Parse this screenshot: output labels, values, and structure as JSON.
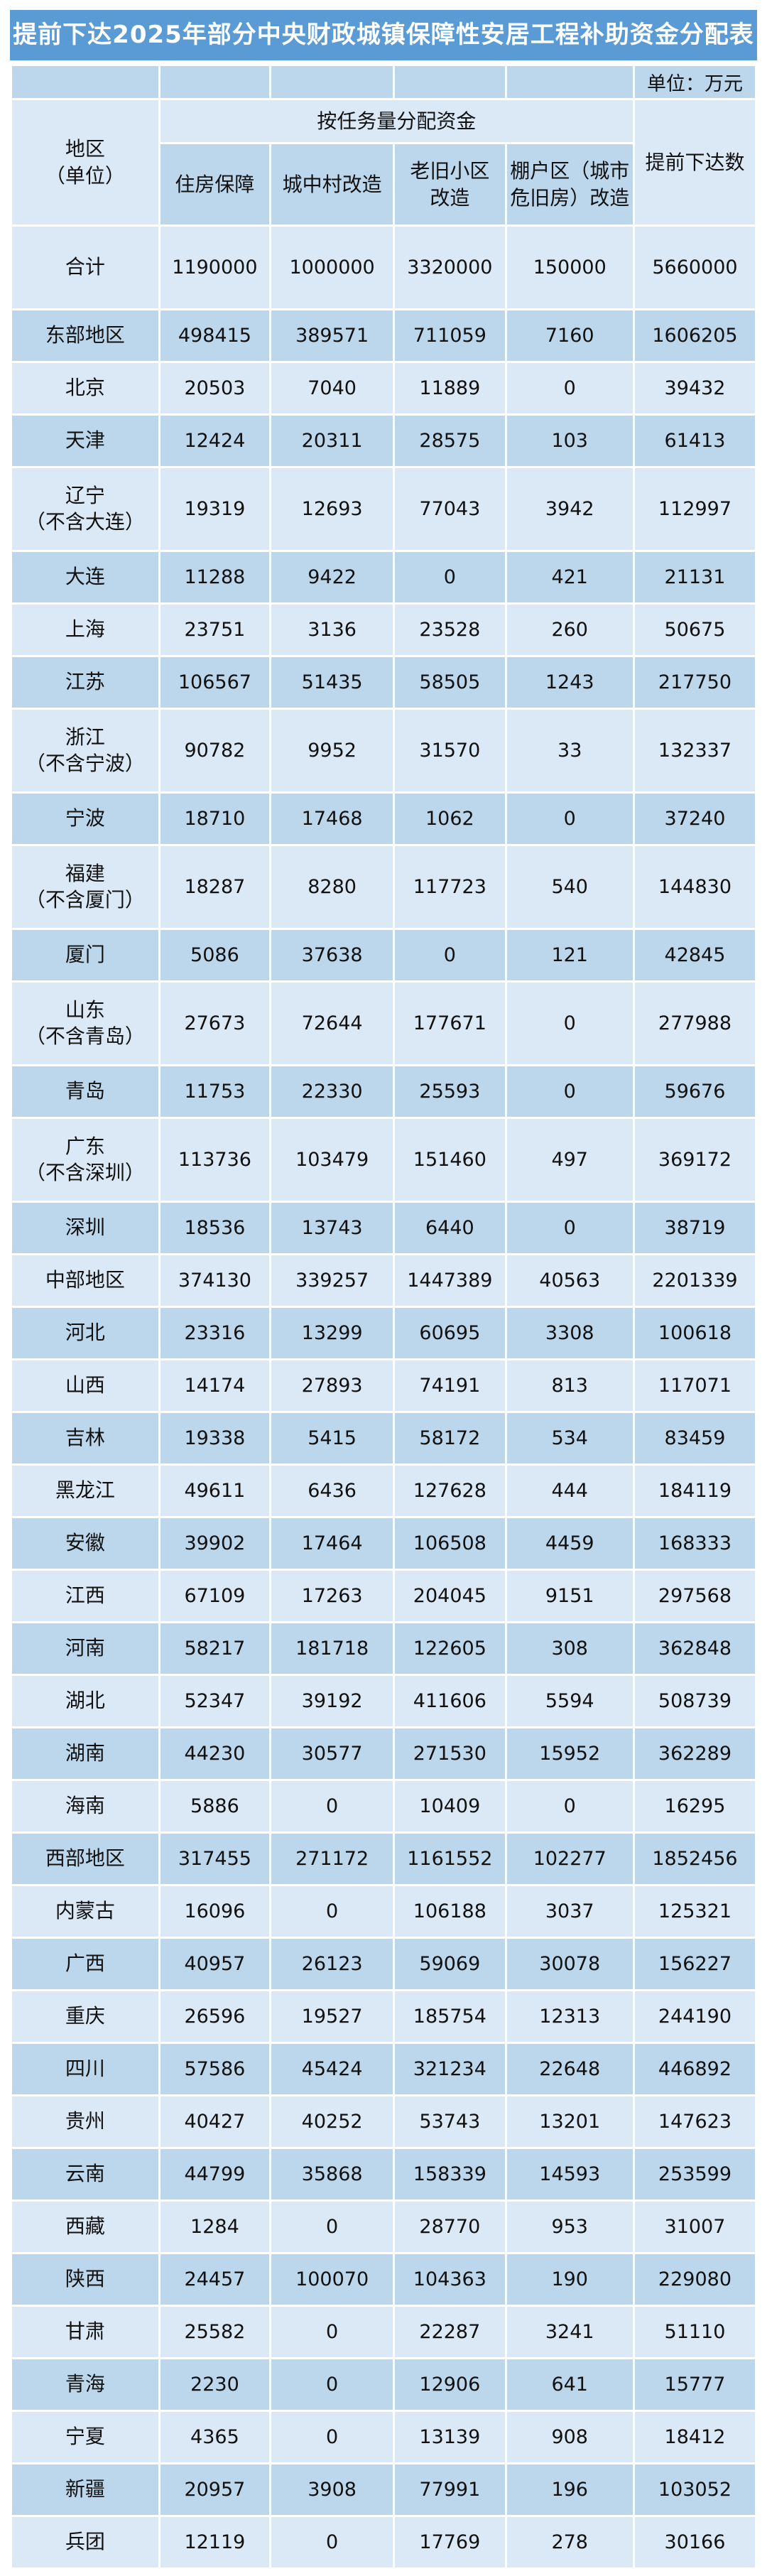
{
  "title": "提前下达2025年部分中央财政城镇保障性安居工程补助资金分配表",
  "unit_note": "单位：万元",
  "colors": {
    "title_bar": "#5b9bd5",
    "title_text": "#ffffff",
    "row_light": "#dbe8f5",
    "row_dark": "#bcd7ec",
    "text": "#111111"
  },
  "table": {
    "region_header": "地区\n（单位）",
    "group_header": "按任务量分配资金",
    "sub_headers": [
      "住房保障",
      "城中村改造",
      "老旧小区\n改造",
      "棚户区（城市\n危旧房）改造"
    ],
    "advance_header": "提前下达数",
    "rows": [
      {
        "region": "合计",
        "values": [
          1190000,
          1000000,
          3320000,
          150000
        ],
        "total": 5660000
      },
      {
        "region": "东部地区",
        "values": [
          498415,
          389571,
          711059,
          7160
        ],
        "total": 1606205
      },
      {
        "region": "北京",
        "values": [
          20503,
          7040,
          11889,
          0
        ],
        "total": 39432
      },
      {
        "region": "天津",
        "values": [
          12424,
          20311,
          28575,
          103
        ],
        "total": 61413
      },
      {
        "region": "辽宁\n（不含大连）",
        "values": [
          19319,
          12693,
          77043,
          3942
        ],
        "total": 112997
      },
      {
        "region": "大连",
        "values": [
          11288,
          9422,
          0,
          421
        ],
        "total": 21131
      },
      {
        "region": "上海",
        "values": [
          23751,
          3136,
          23528,
          260
        ],
        "total": 50675
      },
      {
        "region": "江苏",
        "values": [
          106567,
          51435,
          58505,
          1243
        ],
        "total": 217750
      },
      {
        "region": "浙江\n（不含宁波）",
        "values": [
          90782,
          9952,
          31570,
          33
        ],
        "total": 132337
      },
      {
        "region": "宁波",
        "values": [
          18710,
          17468,
          1062,
          0
        ],
        "total": 37240
      },
      {
        "region": "福建\n（不含厦门）",
        "values": [
          18287,
          8280,
          117723,
          540
        ],
        "total": 144830
      },
      {
        "region": "厦门",
        "values": [
          5086,
          37638,
          0,
          121
        ],
        "total": 42845
      },
      {
        "region": "山东\n（不含青岛）",
        "values": [
          27673,
          72644,
          177671,
          0
        ],
        "total": 277988
      },
      {
        "region": "青岛",
        "values": [
          11753,
          22330,
          25593,
          0
        ],
        "total": 59676
      },
      {
        "region": "广东\n（不含深圳）",
        "values": [
          113736,
          103479,
          151460,
          497
        ],
        "total": 369172
      },
      {
        "region": "深圳",
        "values": [
          18536,
          13743,
          6440,
          0
        ],
        "total": 38719
      },
      {
        "region": "中部地区",
        "values": [
          374130,
          339257,
          1447389,
          40563
        ],
        "total": 2201339
      },
      {
        "region": "河北",
        "values": [
          23316,
          13299,
          60695,
          3308
        ],
        "total": 100618
      },
      {
        "region": "山西",
        "values": [
          14174,
          27893,
          74191,
          813
        ],
        "total": 117071
      },
      {
        "region": "吉林",
        "values": [
          19338,
          5415,
          58172,
          534
        ],
        "total": 83459
      },
      {
        "region": "黑龙江",
        "values": [
          49611,
          6436,
          127628,
          444
        ],
        "total": 184119
      },
      {
        "region": "安徽",
        "values": [
          39902,
          17464,
          106508,
          4459
        ],
        "total": 168333
      },
      {
        "region": "江西",
        "values": [
          67109,
          17263,
          204045,
          9151
        ],
        "total": 297568
      },
      {
        "region": "河南",
        "values": [
          58217,
          181718,
          122605,
          308
        ],
        "total": 362848
      },
      {
        "region": "湖北",
        "values": [
          52347,
          39192,
          411606,
          5594
        ],
        "total": 508739
      },
      {
        "region": "湖南",
        "values": [
          44230,
          30577,
          271530,
          15952
        ],
        "total": 362289
      },
      {
        "region": "海南",
        "values": [
          5886,
          0,
          10409,
          0
        ],
        "total": 16295
      },
      {
        "region": "西部地区",
        "values": [
          317455,
          271172,
          1161552,
          102277
        ],
        "total": 1852456
      },
      {
        "region": "内蒙古",
        "values": [
          16096,
          0,
          106188,
          3037
        ],
        "total": 125321
      },
      {
        "region": "广西",
        "values": [
          40957,
          26123,
          59069,
          30078
        ],
        "total": 156227
      },
      {
        "region": "重庆",
        "values": [
          26596,
          19527,
          185754,
          12313
        ],
        "total": 244190
      },
      {
        "region": "四川",
        "values": [
          57586,
          45424,
          321234,
          22648
        ],
        "total": 446892
      },
      {
        "region": "贵州",
        "values": [
          40427,
          40252,
          53743,
          13201
        ],
        "total": 147623
      },
      {
        "region": "云南",
        "values": [
          44799,
          35868,
          158339,
          14593
        ],
        "total": 253599
      },
      {
        "region": "西藏",
        "values": [
          1284,
          0,
          28770,
          953
        ],
        "total": 31007
      },
      {
        "region": "陕西",
        "values": [
          24457,
          100070,
          104363,
          190
        ],
        "total": 229080
      },
      {
        "region": "甘肃",
        "values": [
          25582,
          0,
          22287,
          3241
        ],
        "total": 51110
      },
      {
        "region": "青海",
        "values": [
          2230,
          0,
          12906,
          641
        ],
        "total": 15777
      },
      {
        "region": "宁夏",
        "values": [
          4365,
          0,
          13139,
          908
        ],
        "total": 18412
      },
      {
        "region": "新疆",
        "values": [
          20957,
          3908,
          77991,
          196
        ],
        "total": 103052
      },
      {
        "region": "兵团",
        "values": [
          12119,
          0,
          17769,
          278
        ],
        "total": 30166
      }
    ]
  }
}
